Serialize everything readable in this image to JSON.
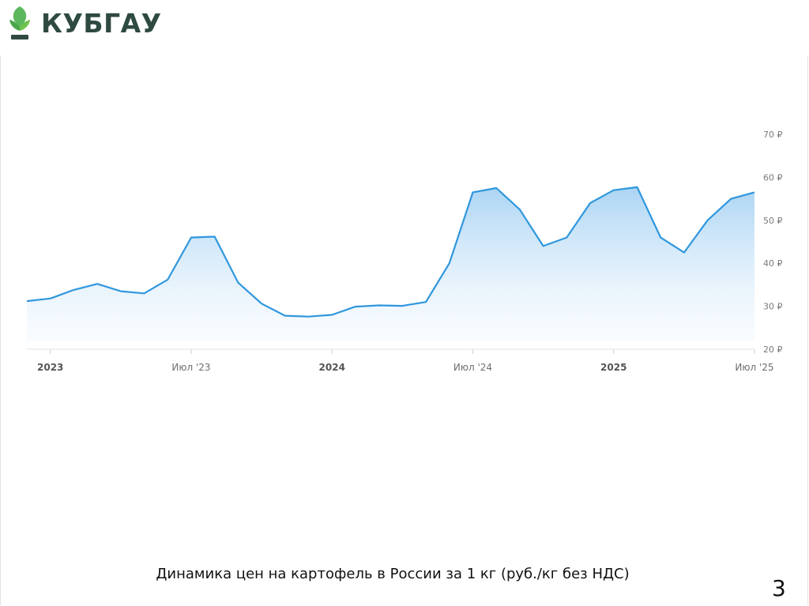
{
  "logo": {
    "text": "КУБГАУ",
    "icon": "wheat-leaf-icon",
    "color": "#2f4a40",
    "accent": "#5cb85c"
  },
  "chart_data": {
    "type": "area",
    "title": "",
    "xlabel": "",
    "ylabel": "",
    "ylim": [
      20,
      70
    ],
    "y_ticks": [
      {
        "value": 70,
        "label": "70 ₽"
      },
      {
        "value": 60,
        "label": "60 ₽"
      },
      {
        "value": 50,
        "label": "50 ₽"
      },
      {
        "value": 40,
        "label": "40 ₽"
      },
      {
        "value": 30,
        "label": "30 ₽"
      },
      {
        "value": 20,
        "label": "20 ₽"
      }
    ],
    "x_ticks": [
      {
        "x": "2023-01",
        "label": "2023",
        "bold": true
      },
      {
        "x": "2023-07",
        "label": "Июл '23",
        "bold": false
      },
      {
        "x": "2024-01",
        "label": "2024",
        "bold": true
      },
      {
        "x": "2024-07",
        "label": "Июл '24",
        "bold": false
      },
      {
        "x": "2025-01",
        "label": "2025",
        "bold": true
      },
      {
        "x": "2025-07",
        "label": "Июл '25",
        "bold": false
      }
    ],
    "x_range": [
      "2022-12",
      "2025-07"
    ],
    "grid": false,
    "series": [
      {
        "color": "#2f97dd",
        "points": [
          {
            "x": "2022-12",
            "y": 31.2
          },
          {
            "x": "2023-01",
            "y": 31.8
          },
          {
            "x": "2023-02",
            "y": 33.8
          },
          {
            "x": "2023-03",
            "y": 35.2
          },
          {
            "x": "2023-04",
            "y": 33.5
          },
          {
            "x": "2023-05",
            "y": 33.0
          },
          {
            "x": "2023-06",
            "y": 36.2
          },
          {
            "x": "2023-07",
            "y": 46.0
          },
          {
            "x": "2023-08",
            "y": 46.2
          },
          {
            "x": "2023-09",
            "y": 35.5
          },
          {
            "x": "2023-10",
            "y": 30.6
          },
          {
            "x": "2023-11",
            "y": 27.8
          },
          {
            "x": "2023-12",
            "y": 27.6
          },
          {
            "x": "2024-01",
            "y": 28.0
          },
          {
            "x": "2024-02",
            "y": 29.9
          },
          {
            "x": "2024-03",
            "y": 30.2
          },
          {
            "x": "2024-04",
            "y": 30.1
          },
          {
            "x": "2024-05",
            "y": 31.0
          },
          {
            "x": "2024-06",
            "y": 40.0
          },
          {
            "x": "2024-07",
            "y": 56.5
          },
          {
            "x": "2024-08",
            "y": 57.5
          },
          {
            "x": "2024-09",
            "y": 52.5
          },
          {
            "x": "2024-10",
            "y": 44.0
          },
          {
            "x": "2024-11",
            "y": 46.0
          },
          {
            "x": "2024-12",
            "y": 54.0
          },
          {
            "x": "2025-01",
            "y": 57.0
          },
          {
            "x": "2025-02",
            "y": 57.7
          },
          {
            "x": "2025-03",
            "y": 46.0
          },
          {
            "x": "2025-04",
            "y": 42.5
          },
          {
            "x": "2025-05",
            "y": 50.0
          },
          {
            "x": "2025-06",
            "y": 55.0
          },
          {
            "x": "2025-07",
            "y": 56.5
          }
        ]
      }
    ]
  },
  "caption": "Динамика цен на картофель в России  за 1 кг (руб./кг без НДС)",
  "page_number": "3"
}
